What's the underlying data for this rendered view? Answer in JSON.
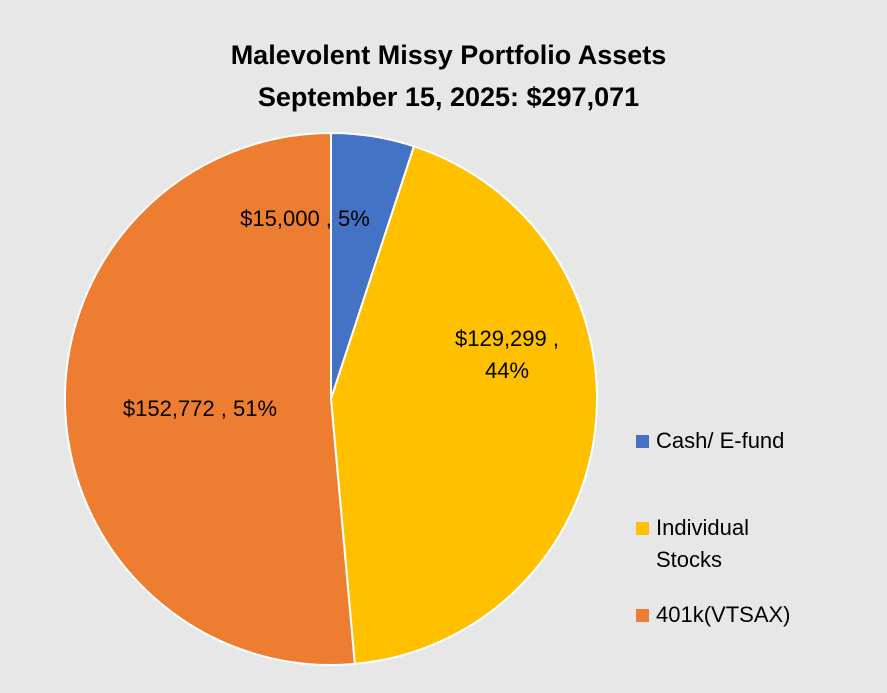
{
  "chart_data": {
    "type": "pie",
    "title": "Malevolent Missy Portfolio Assets",
    "subtitle": "September 15, 2025:  $297,071",
    "categories": [
      "Cash/ E-fund",
      "Individual Stocks",
      "401k(VTSAX)"
    ],
    "legend_labels": [
      "Cash/ E-fund",
      "Individual\nStocks",
      "401k(VTSAX)"
    ],
    "values": [
      15000,
      129299,
      152772
    ],
    "percentages": [
      5,
      44,
      51
    ],
    "data_labels": [
      [
        "$15,000 , 5%"
      ],
      [
        "$129,299 ,",
        "44%"
      ],
      [
        "$152,772 , 51%"
      ]
    ],
    "colors": [
      "#4472c4",
      "#ffc000",
      "#ed7d31"
    ],
    "start_angle": "12 o'clock",
    "direction": "clockwise",
    "legend_position": "right",
    "grid": false
  },
  "background_color": "#e7e7e7"
}
